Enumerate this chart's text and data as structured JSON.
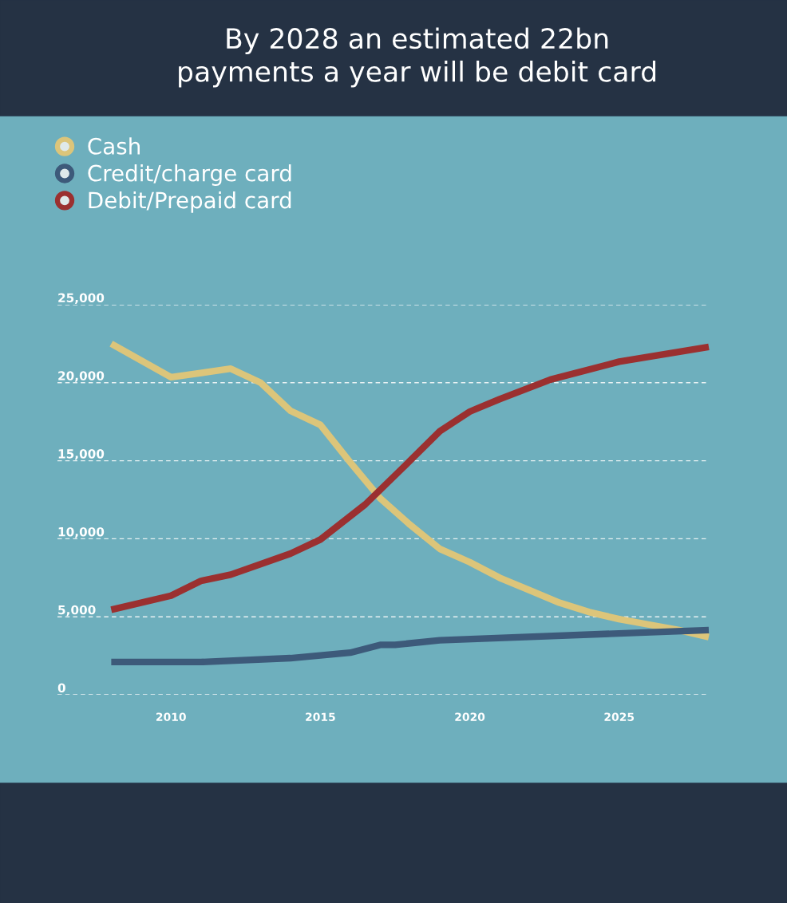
{
  "chart_data": {
    "type": "line",
    "title": "By 2028 an estimated 22bn\npayments a year will be debit card",
    "series": [
      {
        "name": "Cash",
        "color": "#dcc57a",
        "x": [
          2008,
          2010,
          2012,
          2013,
          2014,
          2015,
          2016,
          2017,
          2018,
          2019,
          2020,
          2021,
          2022,
          2023,
          2024,
          2025,
          2026,
          2027,
          2028
        ],
        "values": [
          22500,
          20350,
          20900,
          20000,
          18200,
          17300,
          14900,
          12600,
          10900,
          9350,
          8500,
          7500,
          6700,
          5900,
          5300,
          4850,
          4500,
          4150,
          3700
        ]
      },
      {
        "name": "Credit/charge card",
        "color": "#3d5a7a",
        "x": [
          2008,
          2011,
          2014,
          2016,
          2017,
          2017.5,
          2019,
          2028
        ],
        "values": [
          2100,
          2100,
          2350,
          2700,
          3200,
          3200,
          3500,
          4150
        ]
      },
      {
        "name": "Debit/Prepaid card",
        "color": "#9b3030",
        "x": [
          2008,
          2010,
          2011,
          2012,
          2014,
          2015,
          2016.5,
          2018,
          2019,
          2020,
          2021,
          2022.7,
          2025,
          2028
        ],
        "values": [
          5450,
          6350,
          7300,
          7700,
          9050,
          9950,
          12200,
          15000,
          16900,
          18150,
          18950,
          20200,
          21350,
          22300
        ]
      }
    ],
    "xlim": [
      2006.2,
      2028
    ],
    "xticks": [
      2010,
      2015,
      2020,
      2025
    ],
    "ylim": [
      0,
      25000
    ],
    "yticks": [
      {
        "value": 0,
        "label": "0"
      },
      {
        "value": 5000,
        "label": "5,000"
      },
      {
        "value": 10000,
        "label": "10,000"
      },
      {
        "value": 15000,
        "label": "15,000"
      },
      {
        "value": 20000,
        "label": "20,000"
      },
      {
        "value": 25000,
        "label": "25,000"
      }
    ],
    "grid": "y",
    "legend": "top left",
    "line_style": "solid",
    "marker": "none"
  }
}
